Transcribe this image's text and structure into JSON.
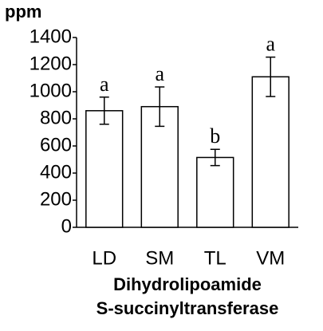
{
  "chart_data": {
    "type": "bar",
    "ylabel": "ppm",
    "xlabel": [
      "Dihydrolipoamide",
      "S-succinyltransferase"
    ],
    "categories": [
      "LD",
      "SM",
      "TL",
      "VM"
    ],
    "values": [
      860,
      890,
      515,
      1110
    ],
    "errors": [
      100,
      145,
      60,
      145
    ],
    "annotations": [
      "a",
      "a",
      "b",
      "a"
    ],
    "color": "#ffffff",
    "ylim": [
      0,
      1400
    ],
    "yticks": [
      0,
      200,
      400,
      600,
      800,
      1000,
      1200,
      1400
    ]
  }
}
